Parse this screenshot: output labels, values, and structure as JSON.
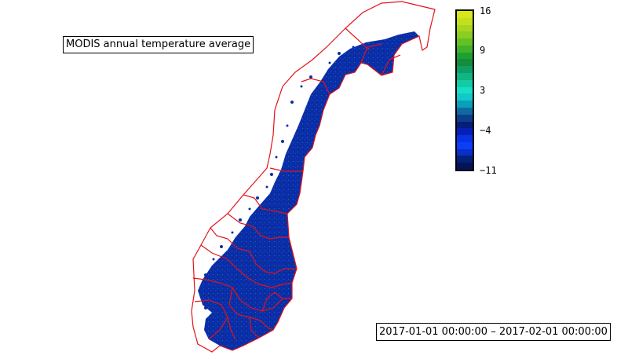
{
  "title": "MODIS annual temperature average",
  "time_range": "2017-01-01 00:00:00 – 2017-02-01 00:00:00",
  "colorbar": {
    "ticks": [
      "16",
      "9",
      "3",
      "−4",
      "−11"
    ],
    "min": -11,
    "max": 16,
    "colors": [
      "#d8e61c",
      "#c2e01e",
      "#a7d61f",
      "#8bcd22",
      "#66c023",
      "#3fb12b",
      "#1f9e34",
      "#138c3c",
      "#0d9f63",
      "#10b584",
      "#14cba4",
      "#16e0c4",
      "#12c8c8",
      "#0a9fba",
      "#0e6b9f",
      "#0c3f8a",
      "#061d7a",
      "#0620b6",
      "#0633e6",
      "#0a3ff5",
      "#0830c8",
      "#03207a",
      "#031456"
    ]
  },
  "map": {
    "land_color": "#0b2ea8",
    "boundary_color": "#e3121a",
    "region": "Norway"
  }
}
